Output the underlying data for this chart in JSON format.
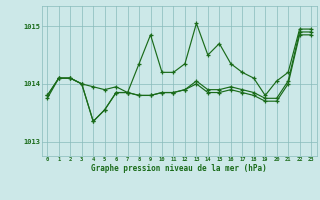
{
  "bg_color": "#cce8e8",
  "grid_color": "#88bbbb",
  "line_color": "#1a6b1a",
  "xlabel": "Graphe pression niveau de la mer (hPa)",
  "xlim": [
    -0.5,
    23.5
  ],
  "ylim": [
    1012.75,
    1015.35
  ],
  "yticks": [
    1013,
    1014,
    1015
  ],
  "xticks": [
    0,
    1,
    2,
    3,
    4,
    5,
    6,
    7,
    8,
    9,
    10,
    11,
    12,
    13,
    14,
    15,
    16,
    17,
    18,
    19,
    20,
    21,
    22,
    23
  ],
  "series1": [
    1013.8,
    1014.1,
    1014.1,
    1014.0,
    1013.95,
    1013.9,
    1013.95,
    1013.85,
    1014.35,
    1014.85,
    1014.2,
    1014.2,
    1014.35,
    1015.05,
    1014.5,
    1014.7,
    1014.35,
    1014.2,
    1014.1,
    1013.8,
    1014.05,
    1014.2,
    1014.95,
    1014.95
  ],
  "series2": [
    1013.8,
    1014.1,
    1014.1,
    1014.0,
    1013.35,
    1013.55,
    1013.85,
    1013.85,
    1013.8,
    1013.8,
    1013.85,
    1013.85,
    1013.9,
    1014.0,
    1013.85,
    1013.85,
    1013.9,
    1013.85,
    1013.8,
    1013.7,
    1013.7,
    1014.0,
    1014.85,
    1014.85
  ],
  "series3": [
    1013.75,
    1014.1,
    1014.1,
    1014.0,
    1013.35,
    1013.55,
    1013.85,
    1013.85,
    1013.8,
    1013.8,
    1013.85,
    1013.85,
    1013.9,
    1014.05,
    1013.9,
    1013.9,
    1013.95,
    1013.9,
    1013.85,
    1013.75,
    1013.75,
    1014.05,
    1014.9,
    1014.9
  ]
}
